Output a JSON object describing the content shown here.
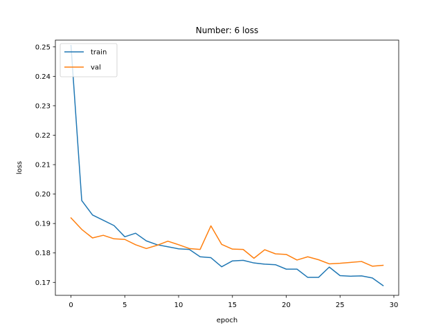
{
  "chart_data": {
    "type": "line",
    "title": "Number: 6 loss",
    "xlabel": "epoch",
    "ylabel": "loss",
    "xlim": [
      -1.45,
      30.45
    ],
    "ylim": [
      0.1656,
      0.2523
    ],
    "xticks": [
      0,
      5,
      10,
      15,
      20,
      25,
      30
    ],
    "yticks": [
      0.17,
      0.18,
      0.19,
      0.2,
      0.21,
      0.22,
      0.23,
      0.24,
      0.25
    ],
    "ytick_labels": [
      "0.17",
      "0.18",
      "0.19",
      "0.20",
      "0.21",
      "0.22",
      "0.23",
      "0.24",
      "0.25"
    ],
    "grid": false,
    "legend_position": "top-left",
    "x": [
      0,
      1,
      2,
      3,
      4,
      5,
      6,
      7,
      8,
      9,
      10,
      11,
      12,
      13,
      14,
      15,
      16,
      17,
      18,
      19,
      20,
      21,
      22,
      23,
      24,
      25,
      26,
      27,
      28,
      29
    ],
    "series": [
      {
        "name": "train",
        "color": "#1f77b4",
        "values": [
          0.2505,
          0.1978,
          0.1929,
          0.1911,
          0.1893,
          0.1855,
          0.1867,
          0.1841,
          0.1828,
          0.1821,
          0.1814,
          0.1812,
          0.1787,
          0.1784,
          0.1753,
          0.1773,
          0.1775,
          0.1766,
          0.1762,
          0.176,
          0.1745,
          0.1745,
          0.1717,
          0.1717,
          0.1752,
          0.1723,
          0.1721,
          0.1722,
          0.1715,
          0.1689
        ]
      },
      {
        "name": "val",
        "color": "#ff7f0e",
        "values": [
          0.1919,
          0.188,
          0.1851,
          0.186,
          0.1848,
          0.1846,
          0.1828,
          0.1815,
          0.1826,
          0.184,
          0.1828,
          0.1815,
          0.1812,
          0.1892,
          0.1829,
          0.1813,
          0.1812,
          0.1782,
          0.1811,
          0.1797,
          0.1795,
          0.1776,
          0.1787,
          0.1777,
          0.1763,
          0.1765,
          0.1768,
          0.1771,
          0.1755,
          0.1758
        ]
      }
    ]
  }
}
